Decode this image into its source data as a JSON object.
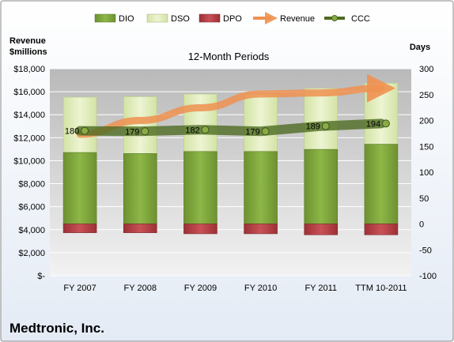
{
  "chart_data": {
    "type": "bar",
    "title": "12-Month Periods",
    "company": "Medtronic, Inc.",
    "left_axis_label_line1": "Revenue",
    "left_axis_label_line2": "$millions",
    "right_axis_label": "Days",
    "categories": [
      "FY 2007",
      "FY 2008",
      "FY 2009",
      "FY 2010",
      "FY 2011",
      "TTM 10-2011"
    ],
    "left_ticks": [
      "$-",
      "$2,000",
      "$4,000",
      "$6,000",
      "$8,000",
      "$10,000",
      "$12,000",
      "$14,000",
      "$16,000",
      "$18,000"
    ],
    "left_ylim": [
      0,
      18000
    ],
    "right_ticks": [
      "-100",
      "-50",
      "0",
      "50",
      "100",
      "150",
      "200",
      "250",
      "300"
    ],
    "right_ylim": [
      -100,
      300
    ],
    "series": [
      {
        "name": "DIO",
        "axis": "right",
        "values": [
          138,
          136,
          140,
          140,
          144,
          154
        ],
        "color": "#7fa33c"
      },
      {
        "name": "DSO",
        "axis": "right",
        "values": [
          107,
          110,
          111,
          111,
          118,
          118
        ],
        "color": "#dfeab7"
      },
      {
        "name": "DPO",
        "axis": "right",
        "values": [
          -17,
          -17,
          -19,
          -19,
          -21,
          -21
        ],
        "color": "#b8444a"
      },
      {
        "name": "Revenue",
        "axis": "left",
        "values": [
          12300,
          13500,
          14600,
          15800,
          15900,
          16300
        ],
        "color": "#ee9150"
      },
      {
        "name": "CCC",
        "axis": "right",
        "values": [
          180,
          179,
          182,
          179,
          189,
          194
        ],
        "labels": [
          "180",
          "179",
          "182",
          "179",
          "189",
          "194"
        ],
        "color": "#4e6b22"
      }
    ],
    "grid": true,
    "legend_position": "top"
  }
}
